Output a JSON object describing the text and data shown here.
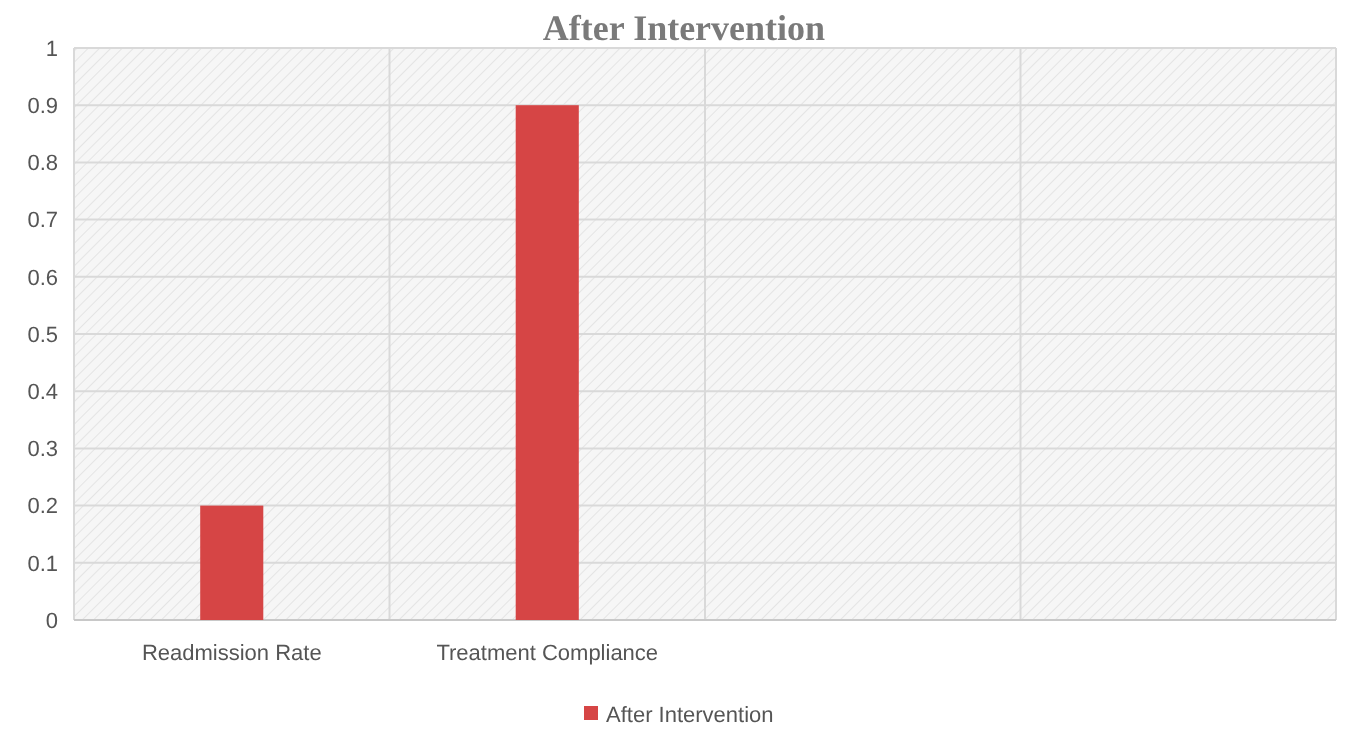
{
  "chart_data": {
    "type": "bar",
    "title": "After Intervention",
    "categories": [
      "Readmission Rate",
      "Treatment Compliance",
      null,
      null
    ],
    "series": [
      {
        "name": "After Intervention",
        "color": "#d64545",
        "values": [
          0.2,
          0.9,
          null,
          null
        ]
      }
    ],
    "ylim": [
      0,
      1
    ],
    "yticks": [
      0,
      0.1,
      0.2,
      0.3,
      0.4,
      0.5,
      0.6,
      0.7,
      0.8,
      0.9,
      1
    ],
    "grid": true,
    "legend": "bottom"
  }
}
